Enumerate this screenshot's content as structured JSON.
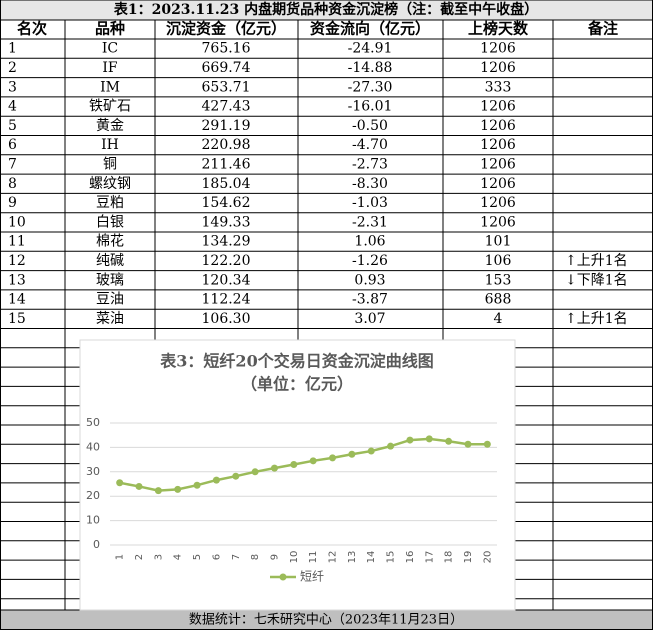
{
  "header": {
    "title": "表1：2023.11.23 内盘期货品种资金沉淀榜（注：截至中午收盘）"
  },
  "table": {
    "columns": [
      "名次",
      "品种",
      "沉淀资金（亿元）",
      "资金流向（亿元）",
      "上榜天数",
      "备注"
    ],
    "rows": [
      [
        "1",
        "IC",
        "765.16",
        "-24.91",
        "1206",
        ""
      ],
      [
        "2",
        "IF",
        "669.74",
        "-14.88",
        "1206",
        ""
      ],
      [
        "3",
        "IM",
        "653.71",
        "-27.30",
        "333",
        ""
      ],
      [
        "4",
        "铁矿石",
        "427.43",
        "-16.01",
        "1206",
        ""
      ],
      [
        "5",
        "黄金",
        "291.19",
        "-0.50",
        "1206",
        ""
      ],
      [
        "6",
        "IH",
        "220.98",
        "-4.70",
        "1206",
        ""
      ],
      [
        "7",
        "铜",
        "211.46",
        "-2.73",
        "1206",
        ""
      ],
      [
        "8",
        "螺纹钢",
        "185.04",
        "-8.30",
        "1206",
        ""
      ],
      [
        "9",
        "豆粕",
        "154.62",
        "-1.03",
        "1206",
        ""
      ],
      [
        "10",
        "白银",
        "149.33",
        "-2.31",
        "1206",
        ""
      ],
      [
        "11",
        "棉花",
        "134.29",
        "1.06",
        "101",
        ""
      ],
      [
        "12",
        "纯碱",
        "122.20",
        "-1.26",
        "106",
        "↑上升1名"
      ],
      [
        "13",
        "玻璃",
        "120.34",
        "0.93",
        "153",
        "↓下降1名"
      ],
      [
        "14",
        "豆油",
        "112.24",
        "-3.87",
        "688",
        ""
      ],
      [
        "15",
        "菜油",
        "106.30",
        "3.07",
        "4",
        "↑上升1名"
      ]
    ]
  },
  "chart_data": {
    "type": "line",
    "title": "表3：短纤20个交易日资金沉淀曲线图",
    "subtitle": "（单位：亿元）",
    "categories": [
      "1",
      "2",
      "3",
      "4",
      "5",
      "6",
      "7",
      "8",
      "9",
      "10",
      "11",
      "12",
      "13",
      "14",
      "15",
      "16",
      "17",
      "18",
      "19",
      "20"
    ],
    "series": [
      {
        "name": "短纤",
        "color": "#9bbb59",
        "values": [
          25.5,
          24,
          22.3,
          22.8,
          24.5,
          26.6,
          28.2,
          30,
          31.5,
          33,
          34.5,
          35.7,
          37.2,
          38.5,
          40.5,
          43,
          43.5,
          42.5,
          41.3,
          41.3
        ]
      }
    ],
    "ylim": [
      0,
      50
    ],
    "yticks": [
      0,
      10,
      20,
      30,
      40,
      50
    ],
    "grid": true
  },
  "footer": {
    "text": "数据统计：七禾研究中心（2023年11月23日）"
  }
}
